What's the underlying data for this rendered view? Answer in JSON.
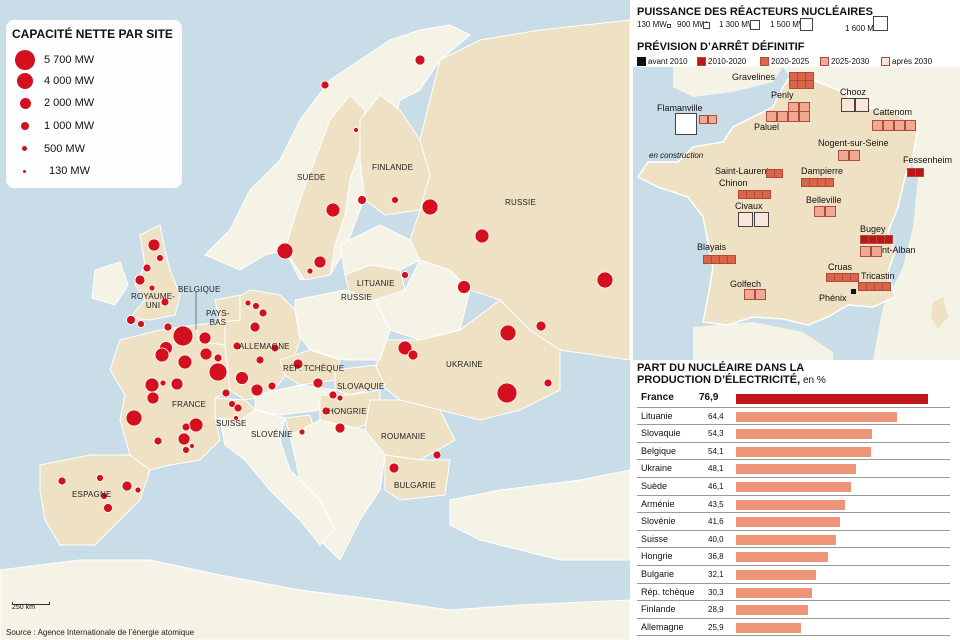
{
  "map": {
    "legend_title": "CAPACITÉ NETTE PAR SITE",
    "legend_items": [
      "5 700 MW",
      "4 000 MW",
      "2 000 MW",
      "1 000 MW",
      "500 MW",
      "130 MW"
    ],
    "countries": {
      "suede": "SUÈDE",
      "finlande": "FINLANDE",
      "russie": "RUSSIE",
      "lituanie": "LITUANIE",
      "russie2": "RUSSIE",
      "royaume_uni": "ROYAUME-\nUNI",
      "belgique": "BELGIQUE",
      "pays_bas": "PAYS-\nBAS",
      "allemagne": "ALLEMAGNE",
      "rep_tcheque": "RÉP. TCHÈQUE",
      "slovaquie": "SLOVAQUIE",
      "ukraine": "UKRAINE",
      "france": "FRANCE",
      "hongrie": "HONGRIE",
      "suisse": "SUISSE",
      "slovenie": "SLOVÉNIE",
      "roumanie": "ROUMANIE",
      "bulgarie": "BULGARIE",
      "espagne": "ESPAGNE"
    },
    "scale_label": "250  km",
    "source": "Source : Agence Internationale de l’énergie atomique",
    "colors": {
      "sea": "#c9dde9",
      "nuclear_country": "#efe1c4",
      "other_country": "#f5f2e6",
      "dot": "#d40f1e"
    }
  },
  "power": {
    "title": "PUISSANCE DES RÉACTEURS NUCLÉAIRES",
    "items": [
      "130 MW",
      "900 MW",
      "1 300 MW",
      "1 500 MW",
      "1 600 MW"
    ]
  },
  "forecast": {
    "title": "PRÉVISION D’ARRÊT DÉFINITIF",
    "items": [
      "avant 2010",
      "2010-2020",
      "2020-2025",
      "2025-2030",
      "après 2030"
    ],
    "colors": [
      "#111111",
      "#c0141d",
      "#d9654b",
      "#eeaa92",
      "#fbe5d8"
    ],
    "note": "en construction"
  },
  "sites": {
    "gravelines": "Gravelines",
    "penly": "Penly",
    "flamanville": "Flamanville",
    "paluel": "Paluel",
    "chooz": "Chooz",
    "cattenom": "Cattenom",
    "nogent": "Nogent-sur-Seine",
    "fessenheim": "Fessenheim",
    "saint_laurent": "Saint-Laurent",
    "chinon": "Chinon",
    "dampierre": "Dampierre",
    "belleville": "Belleville",
    "civaux": "Civaux",
    "bugey": "Bugey",
    "saint_alban": "Saint-Alban",
    "blayais": "Blayais",
    "cruas": "Cruas",
    "tricastin": "Tricastin",
    "golfech": "Golfech",
    "phenix": "Phénix"
  },
  "share": {
    "title_line1": "PART DU NUCLÉAIRE DANS LA",
    "title_line2": "PRODUCTION D’ÉLECTRICITÉ,",
    "unit": " en %",
    "rows": [
      {
        "country": "France",
        "value": "76,9"
      },
      {
        "country": "Lituanie",
        "value": "64,4"
      },
      {
        "country": "Slovaquie",
        "value": "54,3"
      },
      {
        "country": "Belgique",
        "value": "54,1"
      },
      {
        "country": "Ukraine",
        "value": "48,1"
      },
      {
        "country": "Suède",
        "value": "46,1"
      },
      {
        "country": "Arménie",
        "value": "43,5"
      },
      {
        "country": "Slovénie",
        "value": "41,6"
      },
      {
        "country": "Suisse",
        "value": "40,0"
      },
      {
        "country": "Hongrie",
        "value": "36,8"
      },
      {
        "country": "Bulgarie",
        "value": "32,1"
      },
      {
        "country": "Rép. tchèque",
        "value": "30,3"
      },
      {
        "country": "Finlande",
        "value": "28,9"
      },
      {
        "country": "Allemagne",
        "value": "25,9"
      }
    ],
    "colors": {
      "france": "#c0141d",
      "others": "#ee9478"
    }
  }
}
